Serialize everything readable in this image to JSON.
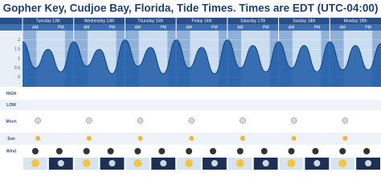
{
  "chart_data": {
    "type": "line",
    "title": "Gopher Key, Cudjoe Bay, Florida, Tide Times. Times are EDT (UTC-04:00)",
    "days": [
      "Tuesday 13th",
      "Wednesday 14th",
      "Thursday 15th",
      "Friday 16th",
      "Saturday 17th",
      "Sunday 18th",
      "Monday 19th"
    ],
    "half_labels": [
      "AM",
      "PM"
    ],
    "row_labels": [
      "HIGH",
      "LOW",
      "Moon",
      "Sun",
      "Wind"
    ],
    "x": [
      0,
      6,
      12,
      18,
      24,
      30,
      36,
      42,
      48,
      54,
      60,
      66,
      72,
      78,
      84,
      90,
      96,
      102,
      108,
      114,
      120,
      126,
      132,
      138,
      144,
      150,
      156,
      162,
      168
    ],
    "values": [
      1.9,
      0.5,
      1.5,
      0.3,
      1.9,
      0.6,
      1.5,
      0.2,
      2.0,
      0.6,
      1.6,
      0.2,
      2.0,
      0.5,
      1.6,
      0.2,
      2.0,
      0.5,
      1.7,
      0.3,
      1.9,
      0.5,
      1.7,
      0.3,
      1.9,
      0.4,
      1.7,
      0.4,
      1.8
    ],
    "xlim": [
      0,
      168
    ],
    "ylim": [
      -0.5,
      2.5
    ],
    "yticks": [
      0,
      0.5,
      1,
      1.5,
      2
    ],
    "color": "#1c5aa6"
  }
}
